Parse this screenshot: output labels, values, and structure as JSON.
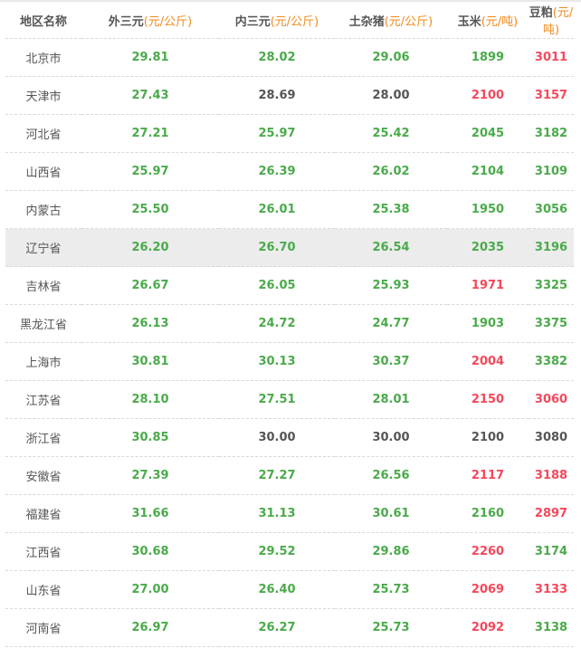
{
  "colors": {
    "green": "#4aaa4a",
    "red": "#f5475b",
    "neutral": "#555555",
    "unit": "#f08a1c"
  },
  "headers": [
    {
      "name": "地区名称",
      "unit": ""
    },
    {
      "name": "外三元",
      "unit": "(元/公斤)"
    },
    {
      "name": "内三元",
      "unit": "(元/公斤)"
    },
    {
      "name": "土杂猪",
      "unit": "(元/公斤)"
    },
    {
      "name": "玉米",
      "unit": "(元/吨)"
    },
    {
      "name": "豆粕",
      "unit": "(元/吨)"
    }
  ],
  "highlighted_row": "辽宁省",
  "rows": [
    {
      "region": "北京市",
      "cells": [
        [
          "29.81",
          "up"
        ],
        [
          "28.02",
          "up"
        ],
        [
          "29.06",
          "up"
        ],
        [
          "1899",
          "up"
        ],
        [
          "3011",
          "down"
        ]
      ]
    },
    {
      "region": "天津市",
      "cells": [
        [
          "27.43",
          "up"
        ],
        [
          "28.69",
          "flat"
        ],
        [
          "28.00",
          "flat"
        ],
        [
          "2100",
          "down"
        ],
        [
          "3157",
          "down"
        ]
      ]
    },
    {
      "region": "河北省",
      "cells": [
        [
          "27.21",
          "up"
        ],
        [
          "25.97",
          "up"
        ],
        [
          "25.42",
          "up"
        ],
        [
          "2045",
          "up"
        ],
        [
          "3182",
          "up"
        ]
      ]
    },
    {
      "region": "山西省",
      "cells": [
        [
          "25.97",
          "up"
        ],
        [
          "26.39",
          "up"
        ],
        [
          "26.02",
          "up"
        ],
        [
          "2104",
          "up"
        ],
        [
          "3109",
          "up"
        ]
      ]
    },
    {
      "region": "内蒙古",
      "cells": [
        [
          "25.50",
          "up"
        ],
        [
          "26.01",
          "up"
        ],
        [
          "25.38",
          "up"
        ],
        [
          "1950",
          "up"
        ],
        [
          "3056",
          "up"
        ]
      ]
    },
    {
      "region": "辽宁省",
      "cells": [
        [
          "26.20",
          "up"
        ],
        [
          "26.70",
          "up"
        ],
        [
          "26.54",
          "up"
        ],
        [
          "2035",
          "up"
        ],
        [
          "3196",
          "up"
        ]
      ]
    },
    {
      "region": "吉林省",
      "cells": [
        [
          "26.67",
          "up"
        ],
        [
          "26.05",
          "up"
        ],
        [
          "25.93",
          "up"
        ],
        [
          "1971",
          "down"
        ],
        [
          "3325",
          "up"
        ]
      ]
    },
    {
      "region": "黑龙江省",
      "cells": [
        [
          "26.13",
          "up"
        ],
        [
          "24.72",
          "up"
        ],
        [
          "24.77",
          "up"
        ],
        [
          "1903",
          "up"
        ],
        [
          "3375",
          "up"
        ]
      ]
    },
    {
      "region": "上海市",
      "cells": [
        [
          "30.81",
          "up"
        ],
        [
          "30.13",
          "up"
        ],
        [
          "30.37",
          "up"
        ],
        [
          "2004",
          "down"
        ],
        [
          "3382",
          "up"
        ]
      ]
    },
    {
      "region": "江苏省",
      "cells": [
        [
          "28.10",
          "up"
        ],
        [
          "27.51",
          "up"
        ],
        [
          "28.01",
          "up"
        ],
        [
          "2150",
          "down"
        ],
        [
          "3060",
          "down"
        ]
      ]
    },
    {
      "region": "浙江省",
      "cells": [
        [
          "30.85",
          "up"
        ],
        [
          "30.00",
          "flat"
        ],
        [
          "30.00",
          "flat"
        ],
        [
          "2100",
          "flat"
        ],
        [
          "3080",
          "flat"
        ]
      ]
    },
    {
      "region": "安徽省",
      "cells": [
        [
          "27.39",
          "up"
        ],
        [
          "27.27",
          "up"
        ],
        [
          "26.56",
          "up"
        ],
        [
          "2117",
          "down"
        ],
        [
          "3188",
          "down"
        ]
      ]
    },
    {
      "region": "福建省",
      "cells": [
        [
          "31.66",
          "up"
        ],
        [
          "31.13",
          "up"
        ],
        [
          "30.61",
          "up"
        ],
        [
          "2160",
          "up"
        ],
        [
          "2897",
          "down"
        ]
      ]
    },
    {
      "region": "江西省",
      "cells": [
        [
          "30.68",
          "up"
        ],
        [
          "29.52",
          "up"
        ],
        [
          "29.86",
          "up"
        ],
        [
          "2260",
          "down"
        ],
        [
          "3174",
          "up"
        ]
      ]
    },
    {
      "region": "山东省",
      "cells": [
        [
          "27.00",
          "up"
        ],
        [
          "26.40",
          "up"
        ],
        [
          "25.73",
          "up"
        ],
        [
          "2069",
          "down"
        ],
        [
          "3133",
          "down"
        ]
      ]
    },
    {
      "region": "河南省",
      "cells": [
        [
          "26.97",
          "up"
        ],
        [
          "26.27",
          "up"
        ],
        [
          "25.73",
          "up"
        ],
        [
          "2092",
          "down"
        ],
        [
          "3138",
          "up"
        ]
      ]
    }
  ]
}
